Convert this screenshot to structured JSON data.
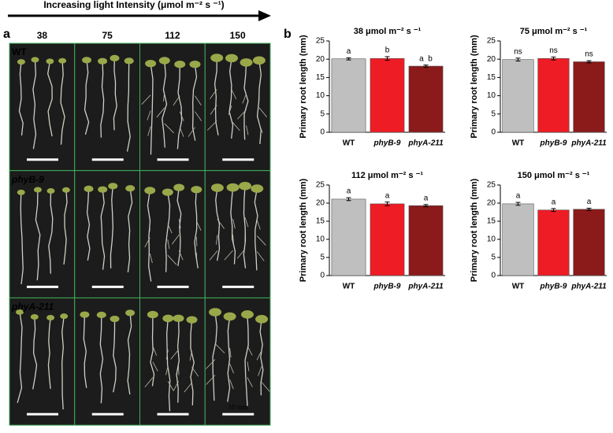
{
  "header": {
    "arrow_label": "Increasing light Intensity (μmol m⁻² s ⁻¹)"
  },
  "panel_a": {
    "label": "a",
    "columns": [
      "38",
      "75",
      "112",
      "150"
    ],
    "rows": [
      "WT",
      "phyB-9",
      "phyA-211"
    ],
    "scale_label": "10 mm"
  },
  "panel_b": {
    "label": "b"
  },
  "chart_data": [
    {
      "type": "bar",
      "title": "38 μmol m⁻² s ⁻¹",
      "y_label": "Primary root length (mm)",
      "categories": [
        "WT",
        "phyB-9",
        "phyA-211"
      ],
      "values": [
        20.1,
        20.2,
        18.1
      ],
      "errors": [
        0.3,
        0.5,
        0.3
      ],
      "annotations": [
        "a",
        "b",
        "a  b"
      ],
      "colors": [
        "#bfbfbf",
        "#ee1c25",
        "#8b1a1a"
      ],
      "ylim": [
        0,
        25
      ],
      "yticks": [
        0,
        5,
        10,
        15,
        20,
        25
      ]
    },
    {
      "type": "bar",
      "title": "75 μmol m⁻² s ⁻¹",
      "y_label": "Primary root length (mm)",
      "categories": [
        "WT",
        "phyB-9",
        "phyA-211"
      ],
      "values": [
        19.9,
        20.2,
        19.3
      ],
      "errors": [
        0.4,
        0.4,
        0.3
      ],
      "annotations": [
        "ns",
        "ns",
        "ns"
      ],
      "colors": [
        "#bfbfbf",
        "#ee1c25",
        "#8b1a1a"
      ],
      "ylim": [
        0,
        25
      ],
      "yticks": [
        0,
        5,
        10,
        15,
        20,
        25
      ]
    },
    {
      "type": "bar",
      "title": "112 μmol m⁻² s ⁻¹",
      "y_label": "Primary root length (mm)",
      "categories": [
        "WT",
        "phyB-9",
        "phyA-211"
      ],
      "values": [
        21.1,
        19.8,
        19.3
      ],
      "errors": [
        0.4,
        0.5,
        0.3
      ],
      "annotations": [
        "a",
        "a",
        "a"
      ],
      "colors": [
        "#bfbfbf",
        "#ee1c25",
        "#8b1a1a"
      ],
      "ylim": [
        0,
        25
      ],
      "yticks": [
        0,
        5,
        10,
        15,
        20,
        25
      ]
    },
    {
      "type": "bar",
      "title": "150 μmol m⁻² s ⁻¹",
      "y_label": "Primary root length (mm)",
      "categories": [
        "WT",
        "phyB-9",
        "phyA-211"
      ],
      "values": [
        19.8,
        18.1,
        18.3
      ],
      "errors": [
        0.4,
        0.4,
        0.3
      ],
      "annotations": [
        "a",
        "a",
        "a"
      ],
      "colors": [
        "#bfbfbf",
        "#ee1c25",
        "#8b1a1a"
      ],
      "ylim": [
        0,
        25
      ],
      "yticks": [
        0,
        5,
        10,
        15,
        20,
        25
      ]
    }
  ]
}
